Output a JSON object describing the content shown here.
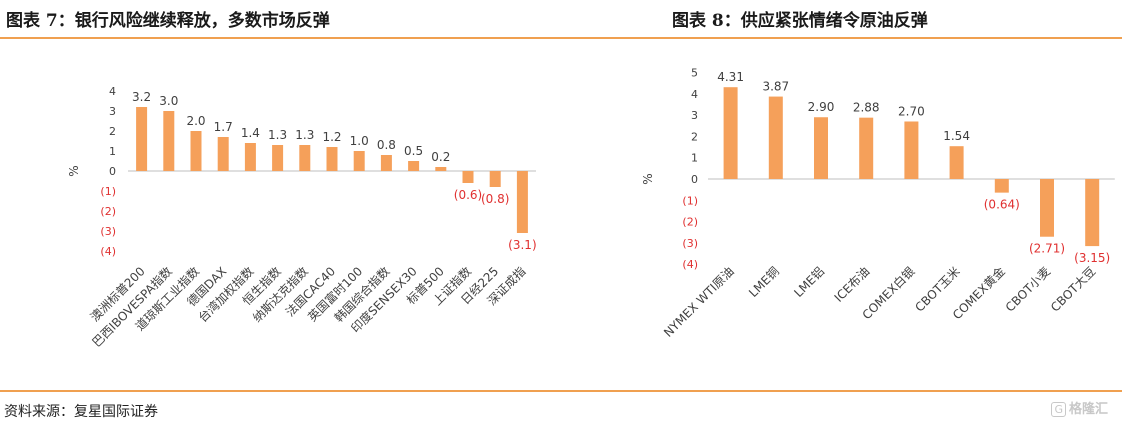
{
  "titles": {
    "left": "图表 7：银行风险继续释放，多数市场反弹",
    "right": "图表 8：供应紧张情绪令原油反弹"
  },
  "source": "资料来源：复星国际证券",
  "watermark": "格隆汇",
  "colors": {
    "bar": "#f5a05a",
    "negative_label": "#e03030",
    "axis": "#bfbfbf",
    "text": "#404040"
  },
  "chart_data": [
    {
      "type": "bar",
      "title": "图表 7：银行风险继续释放，多数市场反弹",
      "ylabel": "%",
      "ylim": [
        -4,
        4
      ],
      "yticks": [
        "(4)",
        "(3)",
        "(2)",
        "(1)",
        "0",
        "1",
        "2",
        "3",
        "4"
      ],
      "categories": [
        "澳洲标普200",
        "巴西IBOVESPA指数",
        "道琼斯工业指数",
        "德国DAX",
        "台湾加权指数",
        "恒生指数",
        "纳斯达克指数",
        "法国CAC40",
        "英国富时100",
        "韩国综合指数",
        "印度SENSEX30",
        "标普500",
        "上证指数",
        "日经225",
        "深证成指"
      ],
      "values": [
        3.2,
        3.0,
        2.0,
        1.7,
        1.4,
        1.3,
        1.3,
        1.2,
        1.0,
        0.8,
        0.5,
        0.2,
        -0.6,
        -0.8,
        -3.1
      ],
      "data_labels": [
        "3.2",
        "3.0",
        "2.0",
        "1.7",
        "1.4",
        "1.3",
        "1.3",
        "1.2",
        "1.0",
        "0.8",
        "0.5",
        "0.2",
        "(0.6)",
        "(0.8)",
        "(3.1)"
      ],
      "grid": false,
      "legend": "none"
    },
    {
      "type": "bar",
      "title": "图表 8：供应紧张情绪令原油反弹",
      "ylabel": "%",
      "ylim": [
        -4,
        5
      ],
      "yticks": [
        "(4)",
        "(3)",
        "(2)",
        "(1)",
        "0",
        "1",
        "2",
        "3",
        "4",
        "5"
      ],
      "categories": [
        "NYMEX WTI原油",
        "LME铜",
        "LME铝",
        "ICE布油",
        "COMEX白银",
        "CBOT玉米",
        "COMEX黄金",
        "CBOT小麦",
        "CBOT大豆"
      ],
      "values": [
        4.31,
        3.87,
        2.9,
        2.88,
        2.7,
        1.54,
        -0.64,
        -2.71,
        -3.15
      ],
      "data_labels": [
        "4.31",
        "3.87",
        "2.90",
        "2.88",
        "2.70",
        "1.54",
        "(0.64)",
        "(2.71)",
        "(3.15)"
      ],
      "grid": false,
      "legend": "none"
    }
  ]
}
